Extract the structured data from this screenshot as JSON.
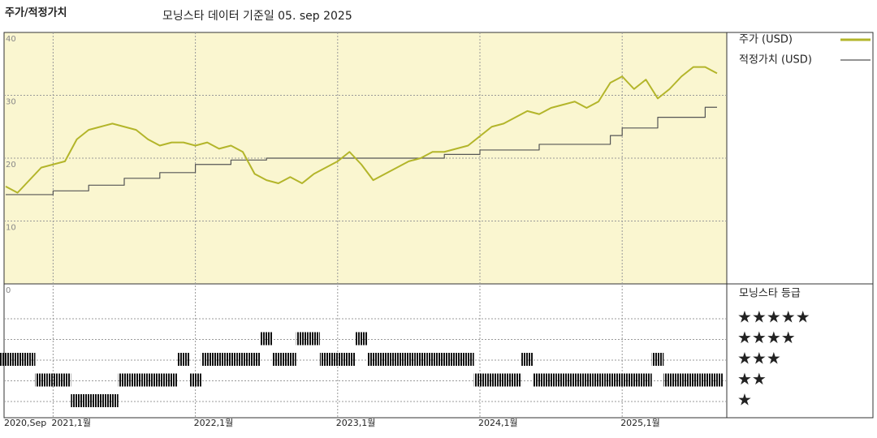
{
  "chart_data": {
    "type": "line",
    "title": "주가/적정가치",
    "subtitle": "모닝스타 데이터 기준일 05. sep 2025",
    "categories": [
      "2020,Sep",
      null,
      null,
      null,
      "2021,1월",
      null,
      null,
      null,
      null,
      null,
      null,
      null,
      null,
      null,
      null,
      null,
      "2022,1월",
      null,
      null,
      null,
      null,
      null,
      null,
      null,
      null,
      null,
      null,
      null,
      "2023,1월",
      null,
      null,
      null,
      null,
      null,
      null,
      null,
      null,
      null,
      null,
      null,
      "2024,1월",
      null,
      null,
      null,
      null,
      null,
      null,
      null,
      null,
      null,
      null,
      null,
      "2025,1월",
      null,
      null,
      null,
      null,
      null,
      null,
      null,
      null
    ],
    "series": [
      {
        "name": "주가 (USD)",
        "color": "#b3b52a",
        "values": [
          15.5,
          14.5,
          16.5,
          18.5,
          19,
          19.5,
          23,
          24.5,
          25,
          25.5,
          25,
          24.5,
          23,
          22,
          22.5,
          22.5,
          22,
          22.5,
          21.5,
          22,
          21,
          17.5,
          16.5,
          16,
          17,
          16,
          17.5,
          18.5,
          19.5,
          21,
          19,
          16.5,
          17.5,
          18.5,
          19.5,
          20,
          21,
          21,
          21.5,
          22,
          23.5,
          25,
          25.5,
          26.5,
          27.5,
          27,
          28,
          28.5,
          29,
          28,
          29,
          32,
          33,
          31,
          32.5,
          29.5,
          31,
          33,
          34.5,
          34.5,
          33.5
        ]
      },
      {
        "name": "적정가치 (USD)",
        "color": "#555555",
        "values": [
          14.2,
          14.2,
          14.2,
          14.2,
          14.8,
          14.8,
          14.8,
          15.7,
          15.7,
          15.7,
          16.8,
          16.8,
          16.8,
          17.7,
          17.7,
          17.7,
          19,
          19,
          19,
          19.7,
          19.7,
          19.7,
          20,
          20,
          20,
          20,
          20,
          20,
          20,
          20,
          20,
          20,
          20,
          20,
          20,
          20,
          20,
          20.6,
          20.6,
          20.6,
          21.3,
          21.3,
          21.3,
          21.3,
          21.3,
          22.2,
          22.2,
          22.2,
          22.2,
          22.2,
          22.2,
          23.6,
          24.8,
          24.8,
          24.8,
          26.5,
          26.5,
          26.5,
          26.5,
          28.1,
          28.1
        ]
      }
    ],
    "ylim": [
      0,
      40
    ],
    "yticks": [
      0,
      10,
      20,
      30,
      40
    ],
    "grid": true,
    "rating": {
      "title": "모닝스타 등급",
      "color": "#111111",
      "ticks": [
        {
          "value": 5,
          "label": "★★★★★"
        },
        {
          "value": 4,
          "label": "★★★★"
        },
        {
          "value": 3,
          "label": "★★★"
        },
        {
          "value": 2,
          "label": "★★"
        },
        {
          "value": 1,
          "label": "★"
        }
      ],
      "values": [
        3,
        3,
        3,
        2,
        2,
        2,
        1,
        1,
        1,
        1,
        2,
        2,
        2,
        2,
        2,
        3,
        2,
        3,
        3,
        3,
        3,
        3,
        4,
        3,
        3,
        4,
        4,
        3,
        3,
        3,
        4,
        3,
        3,
        3,
        3,
        3,
        3,
        3,
        3,
        3,
        2,
        2,
        2,
        2,
        3,
        2,
        2,
        2,
        2,
        2,
        2,
        2,
        2,
        2,
        2,
        3,
        2,
        2,
        2,
        2,
        2
      ]
    }
  }
}
